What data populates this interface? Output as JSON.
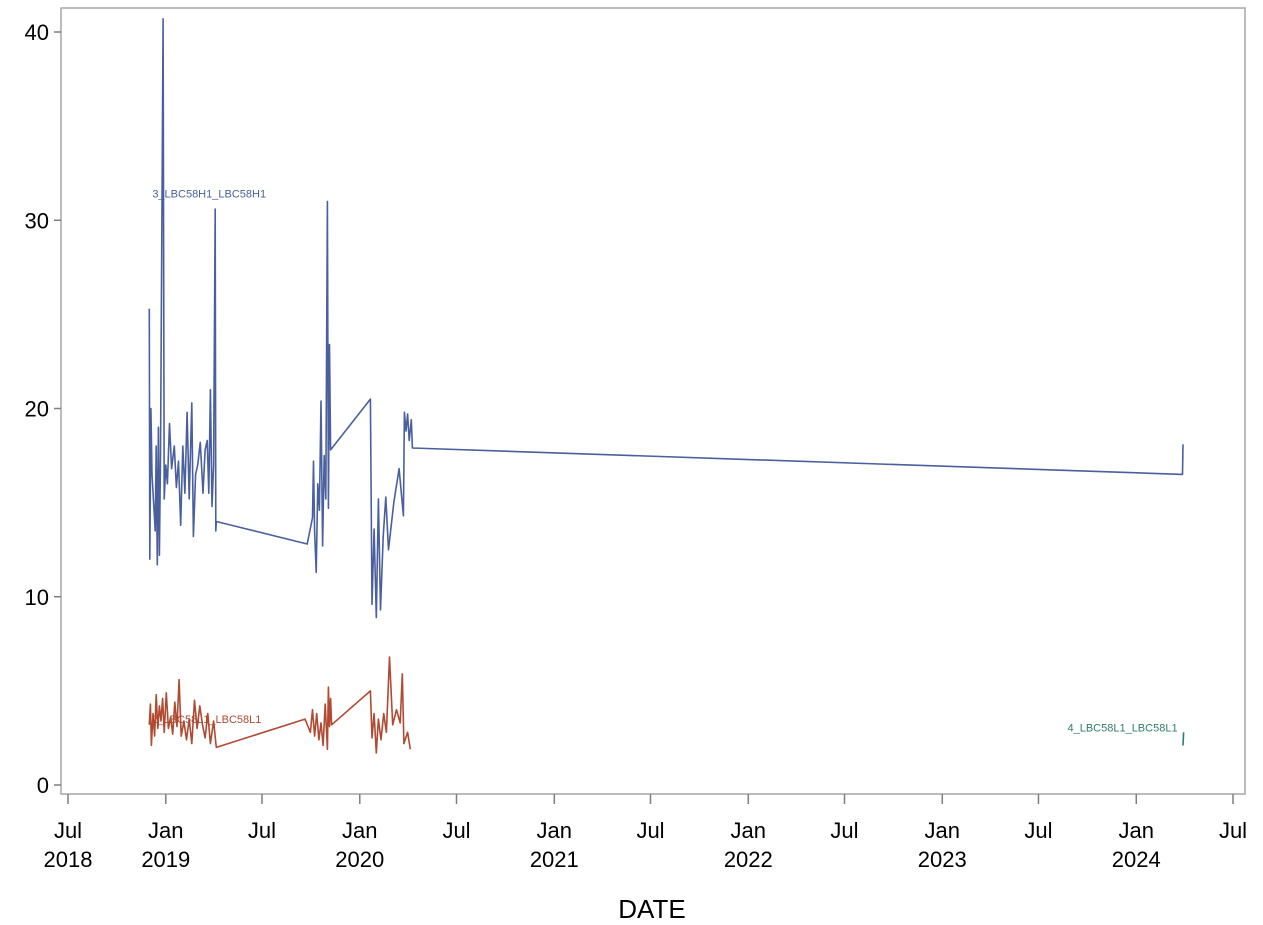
{
  "chart_data": {
    "type": "line",
    "title": "",
    "xlabel": "DATE",
    "ylabel": "",
    "x_type": "date",
    "xlim": [
      "2018-07-01",
      "2024-07-01"
    ],
    "ylim": [
      0,
      40
    ],
    "yticks": [
      0,
      10,
      20,
      30,
      40
    ],
    "xticks": [
      {
        "date": "2018-07-01",
        "line1": "Jul",
        "line2": "2018"
      },
      {
        "date": "2019-01-01",
        "line1": "Jan",
        "line2": "2019"
      },
      {
        "date": "2019-07-01",
        "line1": "Jul",
        "line2": ""
      },
      {
        "date": "2020-01-01",
        "line1": "Jan",
        "line2": "2020"
      },
      {
        "date": "2020-07-01",
        "line1": "Jul",
        "line2": ""
      },
      {
        "date": "2021-01-01",
        "line1": "Jan",
        "line2": "2021"
      },
      {
        "date": "2021-07-01",
        "line1": "Jul",
        "line2": ""
      },
      {
        "date": "2022-01-01",
        "line1": "Jan",
        "line2": "2022"
      },
      {
        "date": "2022-07-01",
        "line1": "Jul",
        "line2": ""
      },
      {
        "date": "2023-01-01",
        "line1": "Jan",
        "line2": "2023"
      },
      {
        "date": "2023-07-01",
        "line1": "Jul",
        "line2": ""
      },
      {
        "date": "2024-01-01",
        "line1": "Jan",
        "line2": "2024"
      },
      {
        "date": "2024-07-01",
        "line1": "Jul",
        "line2": ""
      }
    ],
    "grid": false,
    "legend": "none",
    "series": [
      {
        "name": "3_LBC58H1_LBC58H1",
        "color": "#4a5f9e",
        "points": [
          [
            "2018-12-01",
            25.3
          ],
          [
            "2018-12-02",
            12.0
          ],
          [
            "2018-12-04",
            20.0
          ],
          [
            "2018-12-06",
            16.5
          ],
          [
            "2018-12-09",
            15.0
          ],
          [
            "2018-12-12",
            13.5
          ],
          [
            "2018-12-14",
            18.0
          ],
          [
            "2018-12-16",
            11.7
          ],
          [
            "2018-12-18",
            19.0
          ],
          [
            "2018-12-20",
            12.2
          ],
          [
            "2018-12-22",
            17.5
          ],
          [
            "2018-12-27",
            40.7
          ],
          [
            "2018-12-29",
            15.2
          ],
          [
            "2019-01-01",
            17.0
          ],
          [
            "2019-01-04",
            16.0
          ],
          [
            "2019-01-08",
            19.2
          ],
          [
            "2019-01-12",
            16.8
          ],
          [
            "2019-01-17",
            18.0
          ],
          [
            "2019-01-21",
            15.8
          ],
          [
            "2019-01-25",
            17.2
          ],
          [
            "2019-01-29",
            13.8
          ],
          [
            "2019-02-02",
            18.0
          ],
          [
            "2019-02-06",
            15.5
          ],
          [
            "2019-02-10",
            19.8
          ],
          [
            "2019-02-14",
            15.2
          ],
          [
            "2019-02-19",
            20.3
          ],
          [
            "2019-02-22",
            13.2
          ],
          [
            "2019-02-26",
            16.5
          ],
          [
            "2019-03-02",
            17.0
          ],
          [
            "2019-03-07",
            18.2
          ],
          [
            "2019-03-12",
            15.5
          ],
          [
            "2019-03-16",
            17.8
          ],
          [
            "2019-03-20",
            18.3
          ],
          [
            "2019-03-23",
            15.5
          ],
          [
            "2019-03-26",
            21.0
          ],
          [
            "2019-03-29",
            14.8
          ],
          [
            "2019-04-01",
            17.0
          ],
          [
            "2019-04-04",
            30.6
          ],
          [
            "2019-04-05",
            13.5
          ],
          [
            "2019-04-06",
            14.0
          ],
          [
            "2019-09-24",
            12.8
          ],
          [
            "2019-10-04",
            14.2
          ],
          [
            "2019-10-06",
            17.2
          ],
          [
            "2019-10-08",
            13.5
          ],
          [
            "2019-10-11",
            11.3
          ],
          [
            "2019-10-14",
            16.0
          ],
          [
            "2019-10-17",
            14.6
          ],
          [
            "2019-10-20",
            20.4
          ],
          [
            "2019-10-23",
            12.7
          ],
          [
            "2019-10-26",
            17.5
          ],
          [
            "2019-10-29",
            15.2
          ],
          [
            "2019-11-01",
            31.0
          ],
          [
            "2019-11-03",
            14.7
          ],
          [
            "2019-11-05",
            23.4
          ],
          [
            "2019-11-07",
            17.8
          ],
          [
            "2020-01-21",
            20.5
          ],
          [
            "2020-01-24",
            9.6
          ],
          [
            "2020-01-28",
            13.6
          ],
          [
            "2020-02-01",
            8.9
          ],
          [
            "2020-02-05",
            15.2
          ],
          [
            "2020-02-09",
            9.3
          ],
          [
            "2020-02-14",
            13.2
          ],
          [
            "2020-02-19",
            15.3
          ],
          [
            "2020-02-24",
            12.5
          ],
          [
            "2020-03-05",
            15.0
          ],
          [
            "2020-03-15",
            16.8
          ],
          [
            "2020-03-23",
            14.3
          ],
          [
            "2020-03-25",
            19.8
          ],
          [
            "2020-03-28",
            18.8
          ],
          [
            "2020-03-31",
            19.7
          ],
          [
            "2020-04-03",
            18.3
          ],
          [
            "2020-04-07",
            19.4
          ],
          [
            "2020-04-09",
            17.9
          ],
          [
            "2024-03-28",
            16.5
          ],
          [
            "2024-03-29",
            18.1
          ]
        ],
        "label": "3_LBC58H1_LBC58H1"
      },
      {
        "name": "2_LBC58L1_LBC58L1",
        "color": "#b04a33",
        "points": [
          [
            "2018-12-01",
            3.2
          ],
          [
            "2018-12-03",
            4.3
          ],
          [
            "2018-12-05",
            2.1
          ],
          [
            "2018-12-08",
            3.8
          ],
          [
            "2018-12-11",
            2.6
          ],
          [
            "2018-12-14",
            4.8
          ],
          [
            "2018-12-17",
            3.0
          ],
          [
            "2018-12-20",
            4.2
          ],
          [
            "2018-12-23",
            3.4
          ],
          [
            "2018-12-26",
            4.6
          ],
          [
            "2018-12-29",
            2.8
          ],
          [
            "2019-01-02",
            4.9
          ],
          [
            "2019-01-06",
            3.0
          ],
          [
            "2019-01-10",
            3.6
          ],
          [
            "2019-01-14",
            2.7
          ],
          [
            "2019-01-18",
            4.4
          ],
          [
            "2019-01-22",
            3.1
          ],
          [
            "2019-01-26",
            5.6
          ],
          [
            "2019-01-30",
            2.6
          ],
          [
            "2019-02-04",
            3.4
          ],
          [
            "2019-02-09",
            2.4
          ],
          [
            "2019-02-14",
            3.5
          ],
          [
            "2019-02-19",
            2.2
          ],
          [
            "2019-02-24",
            4.5
          ],
          [
            "2019-03-01",
            3.0
          ],
          [
            "2019-03-06",
            4.2
          ],
          [
            "2019-03-11",
            3.2
          ],
          [
            "2019-03-16",
            2.5
          ],
          [
            "2019-03-21",
            3.8
          ],
          [
            "2019-03-26",
            2.2
          ],
          [
            "2019-04-01",
            3.4
          ],
          [
            "2019-04-06",
            2.0
          ],
          [
            "2019-09-20",
            3.5
          ],
          [
            "2019-09-30",
            2.8
          ],
          [
            "2019-10-04",
            4.0
          ],
          [
            "2019-10-08",
            2.6
          ],
          [
            "2019-10-12",
            3.8
          ],
          [
            "2019-10-16",
            2.4
          ],
          [
            "2019-10-20",
            3.3
          ],
          [
            "2019-10-24",
            2.1
          ],
          [
            "2019-10-28",
            4.3
          ],
          [
            "2019-11-01",
            1.9
          ],
          [
            "2019-11-03",
            5.2
          ],
          [
            "2019-11-05",
            3.1
          ],
          [
            "2019-11-07",
            4.6
          ],
          [
            "2019-11-09",
            3.2
          ],
          [
            "2020-01-21",
            5.0
          ],
          [
            "2020-01-24",
            2.5
          ],
          [
            "2020-01-28",
            3.8
          ],
          [
            "2020-02-01",
            1.7
          ],
          [
            "2020-02-05",
            3.5
          ],
          [
            "2020-02-10",
            2.4
          ],
          [
            "2020-02-15",
            3.8
          ],
          [
            "2020-02-20",
            2.8
          ],
          [
            "2020-02-26",
            6.8
          ],
          [
            "2020-03-03",
            3.2
          ],
          [
            "2020-03-10",
            4.0
          ],
          [
            "2020-03-17",
            3.3
          ],
          [
            "2020-03-21",
            5.9
          ],
          [
            "2020-03-24",
            2.2
          ],
          [
            "2020-03-31",
            2.8
          ],
          [
            "2020-04-05",
            1.9
          ]
        ],
        "label": "2_LBC58L1_LBC58L1"
      },
      {
        "name": "4_LBC58L1_LBC58L1",
        "color": "#2f7d6e",
        "points": [
          [
            "2024-03-29",
            2.1
          ],
          [
            "2024-03-30",
            2.8
          ]
        ],
        "label": "4_LBC58L1_LBC58L1"
      }
    ]
  }
}
